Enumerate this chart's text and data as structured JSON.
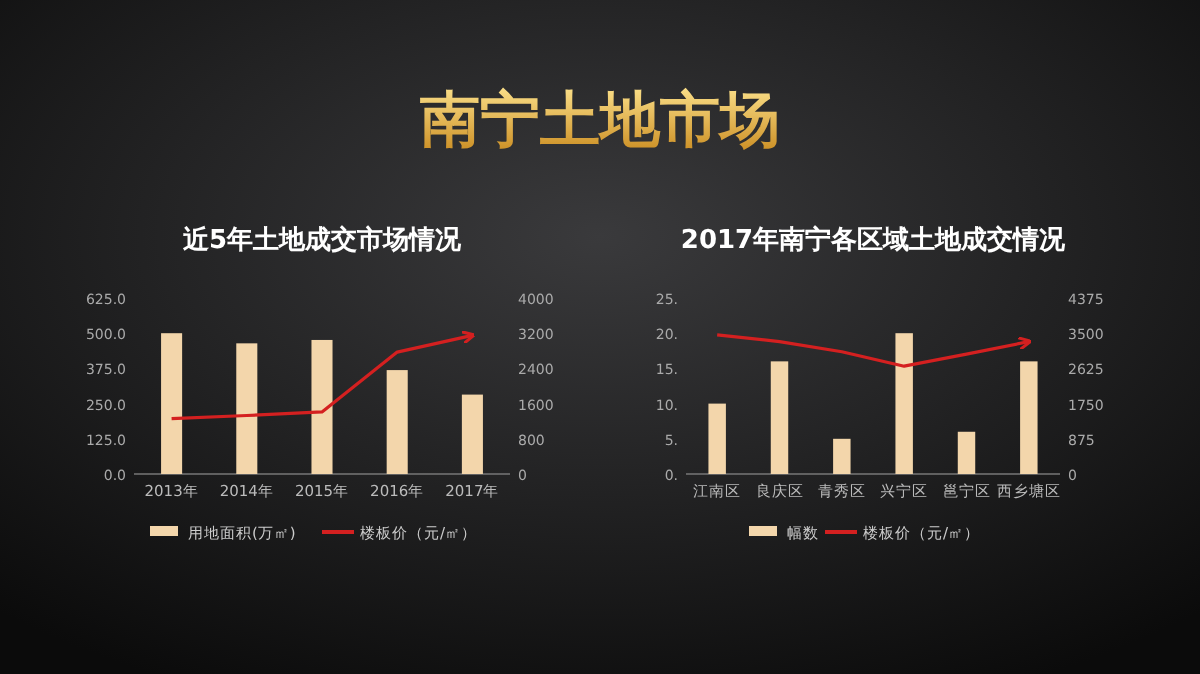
{
  "chart_data": [
    {
      "type": "bar",
      "title": "近5年土地成交市场情况",
      "annotations": [
        "南宁土地市场"
      ],
      "categories": [
        "2013年",
        "2014年",
        "2015年",
        "2016年",
        "2017年"
      ],
      "series": [
        {
          "name": "用地面积(万㎡)",
          "color": "#f3d6ab",
          "values": [
            500,
            464,
            476,
            369,
            282
          ]
        },
        {
          "type": "line",
          "axis": "y2",
          "name": "楼板价（元/㎡）",
          "color": "#d42020",
          "values": [
            1260,
            1330,
            1410,
            2770,
            3150
          ]
        }
      ],
      "ylim": [
        0,
        625
      ],
      "yticks": [
        {
          "value": 0,
          "label": "0.0"
        },
        {
          "value": 125,
          "label": "125.0"
        },
        {
          "value": 250,
          "label": "250.0"
        },
        {
          "value": 375,
          "label": "375.0"
        },
        {
          "value": 500,
          "label": "500.0"
        },
        {
          "value": 625,
          "label": "625.0"
        }
      ],
      "y2lim": [
        0,
        4000
      ],
      "y2ticks": [
        0,
        800,
        1600,
        2400,
        3200,
        4000
      ],
      "legend": "bottom"
    },
    {
      "type": "bar",
      "title": "2017年南宁各区域土地成交情况",
      "categories": [
        "江南区",
        "良庆区",
        "青秀区",
        "兴宁区",
        "邕宁区",
        "西乡塘区"
      ],
      "series": [
        {
          "name": "幅数",
          "color": "#f3d6ab",
          "values": [
            10,
            16,
            5,
            20,
            6,
            16
          ]
        },
        {
          "type": "line",
          "axis": "y2",
          "name": "楼板价（元/㎡）",
          "color": "#d42020",
          "values": [
            3460,
            3290,
            3040,
            2680,
            2980,
            3290
          ]
        }
      ],
      "ylim": [
        0,
        25
      ],
      "yticks": [
        {
          "value": 0,
          "label": "0."
        },
        {
          "value": 5,
          "label": "5."
        },
        {
          "value": 10,
          "label": "10."
        },
        {
          "value": 15,
          "label": "15."
        },
        {
          "value": 20,
          "label": "20."
        },
        {
          "value": 25,
          "label": "25."
        }
      ],
      "y2lim": [
        0,
        4375
      ],
      "y2ticks": [
        0,
        875,
        1750,
        2625,
        3500,
        4375
      ],
      "legend": "bottom"
    }
  ]
}
